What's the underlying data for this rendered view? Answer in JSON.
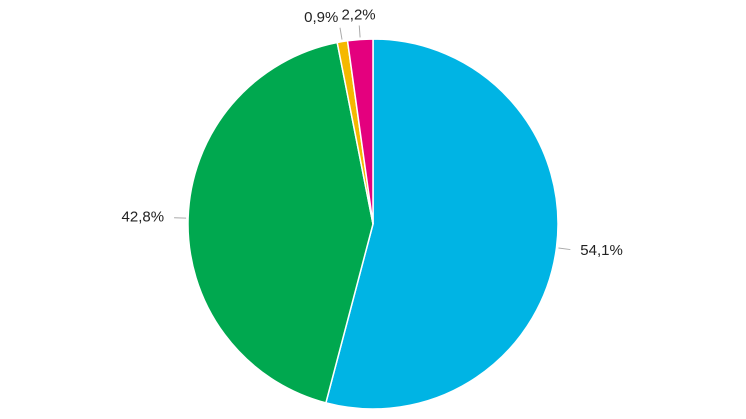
{
  "chart_data": {
    "type": "pie",
    "values": [
      54.1,
      42.8,
      0.9,
      2.2
    ],
    "value_labels": [
      "54,1%",
      "42,8%",
      "0,9%",
      "2,2%"
    ],
    "colors": [
      "#00b4e4",
      "#00a84f",
      "#f5b800",
      "#e4007e"
    ]
  }
}
